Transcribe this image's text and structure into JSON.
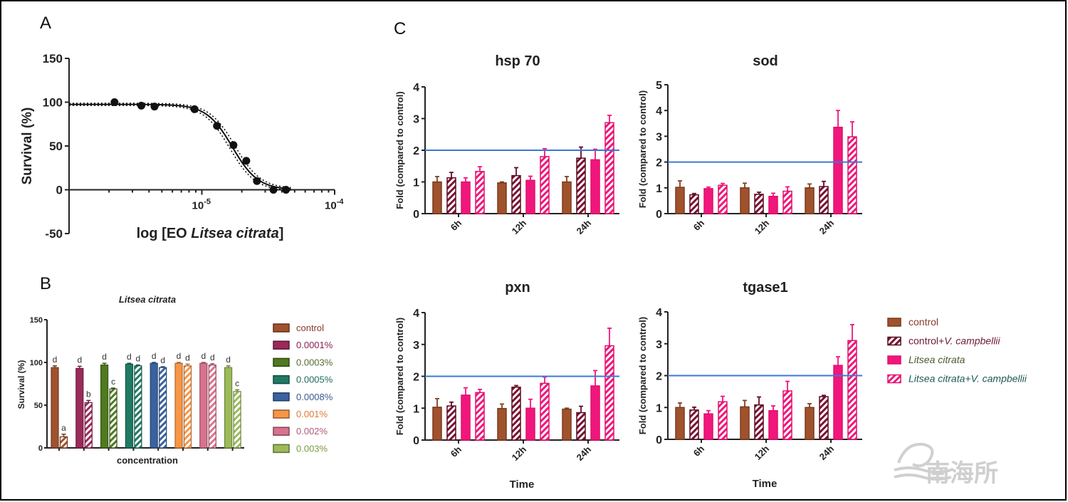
{
  "panels": {
    "a": "A",
    "b": "B",
    "c": "C"
  },
  "watermark": "南海所",
  "chart_data": [
    {
      "id": "A",
      "type": "scatter",
      "xlabel_parts": [
        "log [EO ",
        "Litsea citrata",
        "]"
      ],
      "ylabel": "Survival (%)",
      "x_scale": "log",
      "xlim": [
        1e-06,
        0.0001
      ],
      "ylim": [
        -50,
        150
      ],
      "yticks": [
        "150",
        "100",
        "50",
        "0",
        "-50"
      ],
      "ytick_values": [
        150,
        100,
        50,
        0,
        -50
      ],
      "xticks": [
        {
          "base": "10",
          "exp": "-5",
          "value": 1e-05
        },
        {
          "base": "10",
          "exp": "-4",
          "value": 0.0001
        }
      ],
      "points": [
        {
          "x": 2.2e-06,
          "y": 100
        },
        {
          "x": 3.5e-06,
          "y": 96
        },
        {
          "x": 4.4e-06,
          "y": 95
        },
        {
          "x": 8.8e-06,
          "y": 92
        },
        {
          "x": 1.3e-05,
          "y": 73
        },
        {
          "x": 1.73e-05,
          "y": 51
        },
        {
          "x": 2.16e-05,
          "y": 33
        },
        {
          "x": 2.6e-05,
          "y": 10
        },
        {
          "x": 3.46e-05,
          "y": 0
        },
        {
          "x": 4.3e-05,
          "y": 0
        }
      ],
      "fit": "sigmoidal dose-response with dotted confidence band"
    },
    {
      "id": "B",
      "type": "bar",
      "title": "Litsea citrata",
      "xlabel": "concentration",
      "ylabel": "Survival (%)",
      "ylim": [
        0,
        150
      ],
      "yticks": [
        "150",
        "100",
        "50",
        "0"
      ],
      "ytick_values": [
        150,
        100,
        50,
        0
      ],
      "series_style": [
        "solid",
        "hatched"
      ],
      "groups": [
        {
          "name": "control",
          "color": "#a0522d",
          "values": [
            94,
            13
          ],
          "errors": [
            2,
            3
          ],
          "letters": [
            "d",
            "a"
          ]
        },
        {
          "name": "0.0001%",
          "color": "#9b2a5a",
          "values": [
            93,
            53
          ],
          "errors": [
            2.5,
            2.5
          ],
          "letters": [
            "d",
            "b"
          ]
        },
        {
          "name": "0.0003%",
          "color": "#4f7a1f",
          "values": [
            97,
            69
          ],
          "errors": [
            2,
            1
          ],
          "letters": [
            "d",
            "c"
          ]
        },
        {
          "name": "0.0005%",
          "color": "#1f7a64",
          "values": [
            98,
            96
          ],
          "errors": [
            1,
            1
          ],
          "letters": [
            "d",
            "d"
          ]
        },
        {
          "name": "0.0008%",
          "color": "#3a62a0",
          "values": [
            99,
            94
          ],
          "errors": [
            1,
            1
          ],
          "letters": [
            "d",
            "d"
          ]
        },
        {
          "name": "0.001%",
          "color": "#f79646",
          "values": [
            99,
            96
          ],
          "errors": [
            1,
            2
          ],
          "letters": [
            "d",
            "d"
          ]
        },
        {
          "name": "0.002%",
          "color": "#d9728f",
          "values": [
            99,
            97
          ],
          "errors": [
            1,
            1.5
          ],
          "letters": [
            "d",
            "d"
          ]
        },
        {
          "name": "0.003%",
          "color": "#9bbb59",
          "values": [
            94,
            66
          ],
          "errors": [
            2,
            2
          ],
          "letters": [
            "d",
            "c"
          ]
        }
      ],
      "legend_text_colors": [
        "#8b3a2a",
        "#8b2050",
        "#556b2f",
        "#1f6a5a",
        "#3a5a8a",
        "#e07a3a",
        "#b05a7a",
        "#7a9a40"
      ],
      "legend": "right"
    },
    {
      "id": "C",
      "type": "bar",
      "categories": [
        "6h",
        "12h",
        "24h"
      ],
      "ylabel": "Fold (compared to control)",
      "xlabel": "Time",
      "reference_line": {
        "y": 2,
        "color": "#3a78d8"
      },
      "legend": "right",
      "series": [
        {
          "name_parts": [
            "control",
            ""
          ],
          "color": "#a0522d",
          "style": "solid",
          "text_color": "#8b3a2a"
        },
        {
          "name_parts": [
            "control+",
            "V. campbellii"
          ],
          "color": "#7a1030",
          "style": "hatched",
          "text_color": "#6b1a3a"
        },
        {
          "name_parts": [
            "",
            "Litsea citrata"
          ],
          "color": "#f0167c",
          "style": "solid",
          "text_color": "#4a5a2a"
        },
        {
          "name_parts": [
            "",
            "Litsea citrata+V. campbellii"
          ],
          "color": "#f0167c",
          "style": "hatched",
          "text_color": "#1f5a55"
        }
      ],
      "charts": [
        {
          "title": "hsp 70",
          "ylim": [
            0,
            4
          ],
          "yticks": [
            "4",
            "3",
            "2",
            "1",
            "0"
          ],
          "ytick_values": [
            4,
            3,
            2,
            1,
            0
          ],
          "show_xlabel": false,
          "values": [
            [
              1.0,
              1.13,
              1.0,
              1.33
            ],
            [
              0.97,
              1.2,
              1.05,
              1.8
            ],
            [
              1.0,
              1.75,
              1.7,
              2.87
            ]
          ],
          "errors": [
            [
              0.17,
              0.17,
              0.13,
              0.15
            ],
            [
              0.03,
              0.25,
              0.13,
              0.25
            ],
            [
              0.17,
              0.35,
              0.33,
              0.23
            ]
          ]
        },
        {
          "title": "sod",
          "ylim": [
            0,
            5
          ],
          "yticks": [
            "5",
            "4",
            "3",
            "2",
            "1",
            "0"
          ],
          "ytick_values": [
            5,
            4,
            3,
            2,
            1,
            0
          ],
          "show_xlabel": false,
          "values": [
            [
              1.02,
              0.73,
              0.97,
              1.1
            ],
            [
              1.0,
              0.75,
              0.67,
              0.87
            ],
            [
              1.0,
              1.05,
              3.35,
              2.98
            ]
          ],
          "errors": [
            [
              0.25,
              0.05,
              0.06,
              0.07
            ],
            [
              0.18,
              0.08,
              0.12,
              0.17
            ],
            [
              0.15,
              0.2,
              0.65,
              0.58
            ]
          ]
        },
        {
          "title": "pxn",
          "ylim": [
            0,
            4
          ],
          "yticks": [
            "4",
            "3",
            "2",
            "1",
            "0"
          ],
          "ytick_values": [
            4,
            3,
            2,
            1,
            0
          ],
          "show_xlabel": true,
          "values": [
            [
              1.03,
              1.07,
              1.41,
              1.49
            ],
            [
              0.99,
              1.66,
              1.0,
              1.78
            ],
            [
              0.97,
              0.86,
              1.7,
              2.96
            ]
          ],
          "errors": [
            [
              0.27,
              0.12,
              0.23,
              0.1
            ],
            [
              0.14,
              0.05,
              0.28,
              0.2
            ],
            [
              0.03,
              0.2,
              0.48,
              0.55
            ]
          ]
        },
        {
          "title": "tgase1",
          "ylim": [
            0,
            4
          ],
          "yticks": [
            "4",
            "3",
            "2",
            "1",
            "0"
          ],
          "ytick_values": [
            4,
            3,
            2,
            1,
            0
          ],
          "show_xlabel": true,
          "values": [
            [
              1.0,
              0.92,
              0.8,
              1.18
            ],
            [
              1.02,
              1.08,
              0.9,
              1.52
            ],
            [
              1.0,
              1.34,
              2.32,
              3.1
            ]
          ],
          "errors": [
            [
              0.14,
              0.09,
              0.1,
              0.17
            ],
            [
              0.2,
              0.25,
              0.15,
              0.3
            ],
            [
              0.12,
              0.04,
              0.27,
              0.5
            ]
          ]
        }
      ]
    }
  ]
}
